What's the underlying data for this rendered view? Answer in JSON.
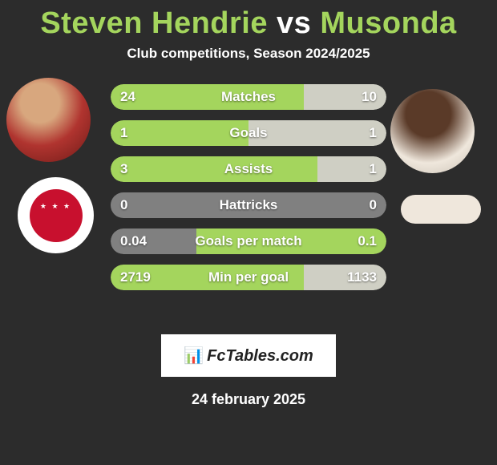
{
  "title": {
    "player_a": "Steven Hendrie",
    "vs": "vs",
    "player_b": "Musonda"
  },
  "subtitle": "Club competitions, Season 2024/2025",
  "colors": {
    "seg_green": "#a4d55d",
    "seg_gray": "#808080",
    "seg_light": "#cfcfc4",
    "bg": "#2c2c2c",
    "text": "#ffffff"
  },
  "rows": [
    {
      "name": "Matches",
      "val_left": "24",
      "val_right": "10",
      "segments": [
        {
          "color": "#a4d55d",
          "pct": 70
        },
        {
          "color": "#cfcfc4",
          "pct": 30
        }
      ]
    },
    {
      "name": "Goals",
      "val_left": "1",
      "val_right": "1",
      "segments": [
        {
          "color": "#a4d55d",
          "pct": 50
        },
        {
          "color": "#cfcfc4",
          "pct": 50
        }
      ]
    },
    {
      "name": "Assists",
      "val_left": "3",
      "val_right": "1",
      "segments": [
        {
          "color": "#a4d55d",
          "pct": 75
        },
        {
          "color": "#cfcfc4",
          "pct": 25
        }
      ]
    },
    {
      "name": "Hattricks",
      "val_left": "0",
      "val_right": "0",
      "segments": [
        {
          "color": "#808080",
          "pct": 100
        }
      ]
    },
    {
      "name": "Goals per match",
      "val_left": "0.04",
      "val_right": "0.1",
      "segments": [
        {
          "color": "#808080",
          "pct": 31
        },
        {
          "color": "#a4d55d",
          "pct": 69
        }
      ]
    },
    {
      "name": "Min per goal",
      "val_left": "2719",
      "val_right": "1133",
      "segments": [
        {
          "color": "#a4d55d",
          "pct": 70
        },
        {
          "color": "#cfcfc4",
          "pct": 30
        }
      ]
    }
  ],
  "brand": {
    "icon": "📊",
    "text": "FcTables.com"
  },
  "date": "24 february 2025"
}
